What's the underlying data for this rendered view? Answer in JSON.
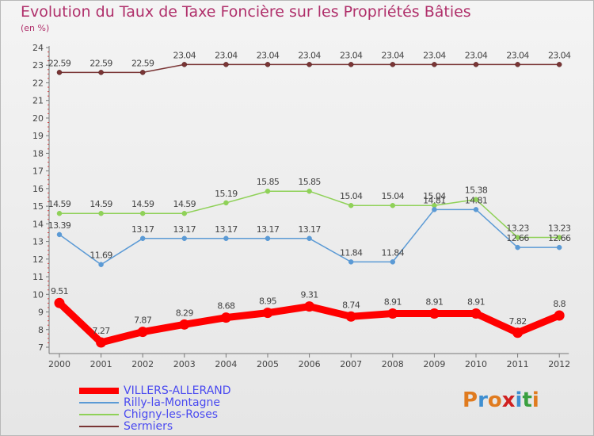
{
  "title": "Evolution du Taux de Taxe Foncière sur les Propriétés Bâties",
  "subtitle": "(en %)",
  "logo": {
    "text": "Proxiti",
    "colors": [
      "#e07b1f",
      "#3f8fd1",
      "#e07b1f",
      "#d02020",
      "#3f8fd1",
      "#3aa040",
      "#e07b1f"
    ]
  },
  "chart_data": {
    "type": "line",
    "x": [
      "2000",
      "2001",
      "2002",
      "2003",
      "2004",
      "2005",
      "2006",
      "2007",
      "2008",
      "2009",
      "2010",
      "2011",
      "2012"
    ],
    "ylim": [
      7,
      24
    ],
    "yticks": [
      "7",
      "8",
      "9",
      "10",
      "11",
      "12",
      "13",
      "14",
      "15",
      "16",
      "17",
      "18",
      "19",
      "20",
      "21",
      "22",
      "23",
      "24"
    ],
    "grid": false,
    "legend": "bottom-left",
    "series": [
      {
        "name": "VILLERS-ALLERAND",
        "color": "#ff0000",
        "values": [
          9.51,
          7.27,
          7.87,
          8.29,
          8.68,
          8.95,
          9.31,
          8.74,
          8.91,
          8.91,
          8.91,
          7.82,
          8.8
        ],
        "labels": [
          "9.51",
          "7.27",
          "7.87",
          "8.29",
          "8.68",
          "8.95",
          "9.31",
          "8.74",
          "8.91",
          "8.91",
          "8.91",
          "7.82",
          "8.8"
        ]
      },
      {
        "name": "Rilly-la-Montagne",
        "color": "#5b9ad5",
        "values": [
          13.39,
          11.69,
          13.17,
          13.17,
          13.17,
          13.17,
          13.17,
          11.84,
          11.84,
          14.81,
          14.81,
          12.66,
          12.66
        ],
        "labels": [
          "13.39",
          "11.69",
          "13.17",
          "13.17",
          "13.17",
          "13.17",
          "13.17",
          "11.84",
          "11.84",
          "14.81",
          "14.81",
          "12.66",
          "12.66"
        ]
      },
      {
        "name": "Chigny-les-Roses",
        "color": "#8fd158",
        "values": [
          14.59,
          14.59,
          14.59,
          14.59,
          15.19,
          15.85,
          15.85,
          15.04,
          15.04,
          15.04,
          15.38,
          13.23,
          13.23
        ],
        "labels": [
          "14.59",
          "14.59",
          "14.59",
          "14.59",
          "15.19",
          "15.85",
          "15.85",
          "15.04",
          "15.04",
          "15.04",
          "15.38",
          "13.23",
          "13.23"
        ]
      },
      {
        "name": "Sermiers",
        "color": "#7a3535",
        "values": [
          22.59,
          22.59,
          22.59,
          23.04,
          23.04,
          23.04,
          23.04,
          23.04,
          23.04,
          23.04,
          23.04,
          23.04,
          23.04
        ],
        "labels": [
          "22.59",
          "22.59",
          "22.59",
          "23.04",
          "23.04",
          "23.04",
          "23.04",
          "23.04",
          "23.04",
          "23.04",
          "23.04",
          "23.04",
          "23.04"
        ]
      }
    ]
  }
}
